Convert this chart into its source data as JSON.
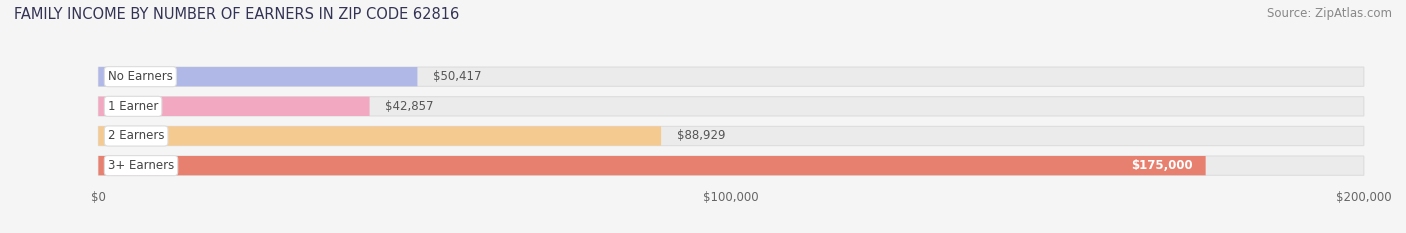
{
  "title": "FAMILY INCOME BY NUMBER OF EARNERS IN ZIP CODE 62816",
  "source": "Source: ZipAtlas.com",
  "categories": [
    "No Earners",
    "1 Earner",
    "2 Earners",
    "3+ Earners"
  ],
  "values": [
    50417,
    42857,
    88929,
    175000
  ],
  "bar_colors": [
    "#b0b8e8",
    "#f2a8c0",
    "#f5ca90",
    "#e88070"
  ],
  "bar_edge_colors": [
    "#c0c8f0",
    "#f8b8d0",
    "#fad8a0",
    "#f09080"
  ],
  "value_labels": [
    "$50,417",
    "$42,857",
    "$88,929",
    "$175,000"
  ],
  "value_label_inside": [
    false,
    false,
    false,
    true
  ],
  "xlim": [
    0,
    200000
  ],
  "xtick_values": [
    0,
    100000,
    200000
  ],
  "xtick_labels": [
    "$0",
    "$100,000",
    "$200,000"
  ],
  "background_color": "#f5f5f5",
  "bar_background_color": "#ebebeb",
  "bar_background_edge": "#dddddd",
  "title_fontsize": 10.5,
  "label_fontsize": 8.5,
  "value_fontsize": 8.5,
  "source_fontsize": 8.5,
  "title_color": "#333355",
  "source_color": "#888888",
  "category_label_color": "#444444",
  "value_label_color_outside": "#555555",
  "value_label_color_inside": "#ffffff"
}
